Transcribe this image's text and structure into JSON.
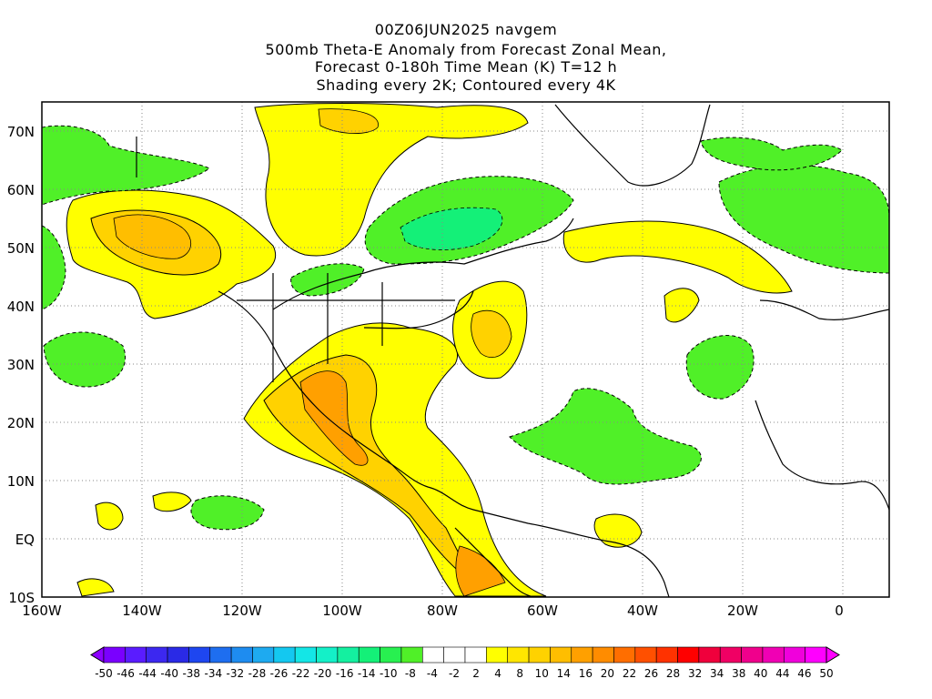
{
  "title": {
    "line1": "00Z06JUN2025 navgem",
    "line2": "500mb Theta-E Anomaly from Forecast Zonal Mean,",
    "line3": "Forecast 0-180h Time Mean (K) T=12 h",
    "line4": "Shading every 2K; Contoured every 4K"
  },
  "map": {
    "lon_range": [
      -160,
      10
    ],
    "lat_range": [
      -10,
      75
    ],
    "lon_ticks": [
      {
        "value": -160,
        "label": "160W"
      },
      {
        "value": -140,
        "label": "140W"
      },
      {
        "value": -120,
        "label": "120W"
      },
      {
        "value": -100,
        "label": "100W"
      },
      {
        "value": -80,
        "label": "80W"
      },
      {
        "value": -60,
        "label": "60W"
      },
      {
        "value": -40,
        "label": "40W"
      },
      {
        "value": -20,
        "label": "20W"
      },
      {
        "value": 0,
        "label": "0"
      }
    ],
    "lat_ticks": [
      {
        "value": 70,
        "label": "70N"
      },
      {
        "value": 60,
        "label": "60N"
      },
      {
        "value": 50,
        "label": "50N"
      },
      {
        "value": 40,
        "label": "40N"
      },
      {
        "value": 30,
        "label": "30N"
      },
      {
        "value": 20,
        "label": "20N"
      },
      {
        "value": 10,
        "label": "10N"
      },
      {
        "value": 0,
        "label": "EQ"
      },
      {
        "value": -10,
        "label": "10S"
      }
    ],
    "grid": true,
    "grid_style": "dotted"
  },
  "colorbar": {
    "labels": [
      "-50",
      "-46",
      "-44",
      "-40",
      "-38",
      "-34",
      "-32",
      "-28",
      "-26",
      "-22",
      "-20",
      "-16",
      "-14",
      "-10",
      "-8",
      "-4",
      "-2",
      "2",
      "4",
      "8",
      "10",
      "14",
      "16",
      "20",
      "22",
      "26",
      "28",
      "32",
      "34",
      "38",
      "40",
      "44",
      "46",
      "50"
    ],
    "colors": [
      "#7a00ff",
      "#5a1cff",
      "#3c28f0",
      "#2a2ae6",
      "#1e46f0",
      "#1e6ef0",
      "#1e8cf0",
      "#1eaaf0",
      "#14c8f0",
      "#14e6e6",
      "#14f0c8",
      "#14f0a0",
      "#14f078",
      "#28f050",
      "#50f028",
      "#ffffff",
      "#ffffff",
      "#ffffff",
      "#ffff00",
      "#ffe600",
      "#ffd200",
      "#ffbe00",
      "#ffa000",
      "#ff8c00",
      "#ff6e00",
      "#ff5000",
      "#ff3200",
      "#ff0000",
      "#f0003c",
      "#f00064",
      "#f0008c",
      "#f000b4",
      "#f000dc",
      "#ff00ff"
    ],
    "left_end_color": "#8c00ff",
    "right_end_color": "#ff00ff"
  }
}
